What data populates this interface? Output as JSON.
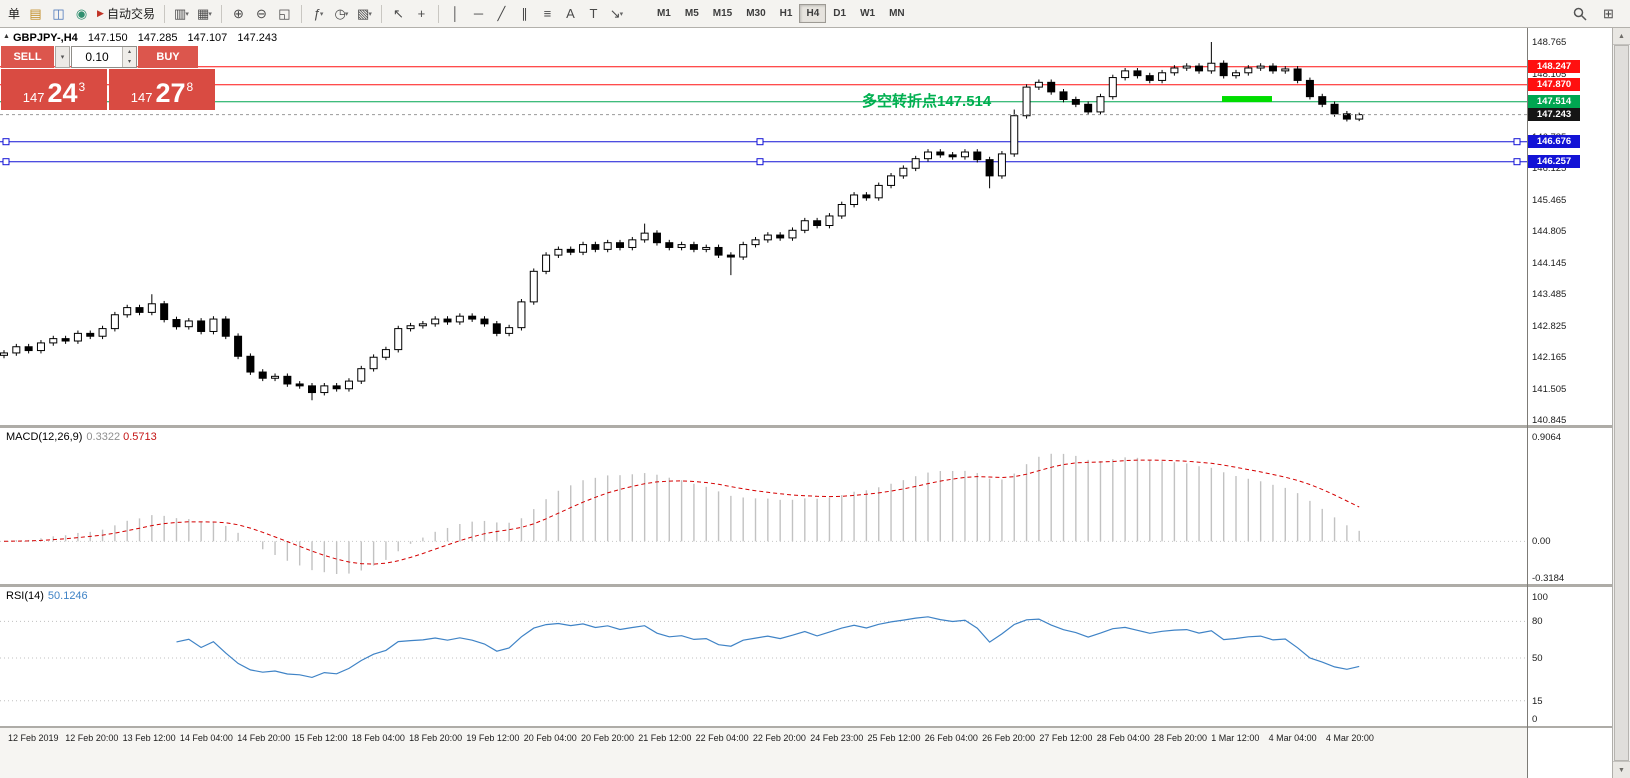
{
  "toolbar": {
    "caret_glyph": "▾",
    "items": [
      {
        "name": "new-order-button",
        "type": "text",
        "label": "单"
      },
      {
        "name": "market-watch-icon",
        "glyph": "▤",
        "color": "#c08a22"
      },
      {
        "name": "navigator-icon",
        "glyph": "◫",
        "color": "#4472b8"
      },
      {
        "name": "terminal-icon",
        "glyph": "◉",
        "color": "#2f8f6f"
      },
      {
        "name": "autotrading-button",
        "type": "text",
        "glyph": "▶",
        "glyph_color": "#c03326",
        "label": "自动交易"
      },
      {
        "sep": true
      },
      {
        "name": "new-chart-icon",
        "glyph": "▥",
        "caret": true
      },
      {
        "name": "profiles-icon",
        "glyph": "▦",
        "caret": true
      },
      {
        "sep": true
      },
      {
        "name": "zoom-in-icon",
        "glyph": "⊕"
      },
      {
        "name": "zoom-out-icon",
        "glyph": "⊖"
      },
      {
        "name": "tile-windows-icon",
        "glyph": "◱"
      },
      {
        "sep": true
      },
      {
        "name": "indicators-icon",
        "glyph": "ƒ",
        "caret": true
      },
      {
        "name": "periods-icon",
        "glyph": "◷",
        "caret": true
      },
      {
        "name": "templates-icon",
        "glyph": "▧",
        "caret": true
      },
      {
        "sep": true
      },
      {
        "name": "cursor-icon",
        "glyph": "↖"
      },
      {
        "name": "crosshair-icon",
        "glyph": "+"
      },
      {
        "sep": true
      },
      {
        "name": "vertical-line-icon",
        "glyph": "│"
      },
      {
        "name": "horizontal-line-icon",
        "glyph": "─"
      },
      {
        "name": "trendline-icon",
        "glyph": "╱"
      },
      {
        "name": "channel-icon",
        "glyph": "∥"
      },
      {
        "name": "fibonacci-icon",
        "glyph": "≡"
      },
      {
        "name": "text-icon",
        "glyph": "A"
      },
      {
        "name": "label-icon",
        "glyph": "T"
      },
      {
        "name": "arrows-icon",
        "glyph": "↘",
        "caret": true
      }
    ],
    "timeframes": [
      "M1",
      "M5",
      "M15",
      "M30",
      "H1",
      "H4",
      "D1",
      "W1",
      "MN"
    ],
    "active_timeframe": "H4",
    "right_window_glyph": "⊞"
  },
  "trade_panel": {
    "sell_label": "SELL",
    "buy_label": "BUY",
    "volume": "0.10",
    "caret": "▾",
    "spin_up": "▴",
    "spin_down": "▾",
    "sell_price": {
      "main": "147",
      "big": "24",
      "sup": "3"
    },
    "buy_price": {
      "main": "147",
      "big": "27",
      "sup": "8"
    }
  },
  "chart": {
    "collapse_glyph": "▲",
    "title": {
      "symbol": "GBPJPY-,H4",
      "open": "147.150",
      "high": "147.285",
      "low": "147.107",
      "close": "147.243"
    },
    "annotation": {
      "text": "多空转折点147.514",
      "color": "#00b050"
    }
  },
  "scrollbar": {
    "up": "▲",
    "down": "▼"
  },
  "chart_data": {
    "type": "candlestick",
    "symbol": "GBPJPY-",
    "timeframe": "H4",
    "price_axis_range": [
      140.845,
      148.765
    ],
    "price_axis_labels": [
      "148.765",
      "148.105",
      "147.445",
      "146.785",
      "146.125",
      "145.465",
      "144.805",
      "144.145",
      "143.485",
      "142.825",
      "142.165",
      "141.505",
      "140.845"
    ],
    "current_price": 147.243,
    "current_price_tag_color": "#151515",
    "hlines": [
      {
        "price": 148.247,
        "color": "#ff1010",
        "tag": true
      },
      {
        "price": 147.87,
        "color": "#ff1010",
        "tag": true
      },
      {
        "price": 147.514,
        "color": "#00a651",
        "tag": true
      },
      {
        "price": 146.676,
        "color": "#1313d6",
        "tag": true,
        "handles": true
      },
      {
        "price": 146.257,
        "color": "#1313d6",
        "tag": true,
        "handles": true
      }
    ],
    "green_segment": {
      "price": 147.57,
      "color": "#00dd00"
    },
    "time_labels": [
      "12 Feb 2019",
      "12 Feb 20:00",
      "13 Feb 12:00",
      "14 Feb 04:00",
      "14 Feb 20:00",
      "15 Feb 12:00",
      "18 Feb 04:00",
      "18 Feb 20:00",
      "19 Feb 12:00",
      "20 Feb 04:00",
      "20 Feb 20:00",
      "21 Feb 12:00",
      "22 Feb 04:00",
      "22 Feb 20:00",
      "24 Feb 23:00",
      "25 Feb 12:00",
      "26 Feb 04:00",
      "26 Feb 20:00",
      "27 Feb 12:00",
      "28 Feb 04:00",
      "28 Feb 20:00",
      "1 Mar 12:00",
      "4 Mar 04:00",
      "4 Mar 20:00"
    ],
    "ohlc": [
      [
        142.2,
        142.31,
        142.14,
        142.25
      ],
      [
        142.25,
        142.44,
        142.19,
        142.38
      ],
      [
        142.38,
        142.44,
        142.24,
        142.3
      ],
      [
        142.3,
        142.52,
        142.24,
        142.46
      ],
      [
        142.46,
        142.61,
        142.4,
        142.55
      ],
      [
        142.55,
        142.61,
        142.44,
        142.5
      ],
      [
        142.5,
        142.72,
        142.44,
        142.66
      ],
      [
        142.66,
        142.72,
        142.54,
        142.6
      ],
      [
        142.6,
        142.82,
        142.54,
        142.76
      ],
      [
        142.76,
        143.11,
        142.7,
        143.05
      ],
      [
        143.05,
        143.26,
        142.99,
        143.2
      ],
      [
        143.2,
        143.26,
        143.04,
        143.1
      ],
      [
        143.1,
        143.48,
        143.04,
        143.28
      ],
      [
        143.28,
        143.34,
        142.89,
        142.95
      ],
      [
        142.95,
        143.01,
        142.74,
        142.8
      ],
      [
        142.8,
        142.98,
        142.74,
        142.92
      ],
      [
        142.92,
        142.98,
        142.64,
        142.7
      ],
      [
        142.7,
        143.02,
        142.64,
        142.96
      ],
      [
        142.96,
        143.02,
        142.54,
        142.6
      ],
      [
        142.6,
        142.66,
        142.12,
        142.18
      ],
      [
        142.18,
        142.24,
        141.79,
        141.85
      ],
      [
        141.85,
        141.91,
        141.66,
        141.72
      ],
      [
        141.72,
        141.82,
        141.66,
        141.76
      ],
      [
        141.76,
        141.82,
        141.54,
        141.6
      ],
      [
        141.6,
        141.66,
        141.5,
        141.56
      ],
      [
        141.56,
        141.62,
        141.26,
        141.42
      ],
      [
        141.42,
        141.62,
        141.36,
        141.56
      ],
      [
        141.56,
        141.62,
        141.44,
        141.5
      ],
      [
        141.5,
        141.72,
        141.44,
        141.66
      ],
      [
        141.66,
        141.98,
        141.6,
        141.92
      ],
      [
        141.92,
        142.22,
        141.86,
        142.16
      ],
      [
        142.16,
        142.38,
        142.1,
        142.32
      ],
      [
        142.32,
        142.82,
        142.26,
        142.76
      ],
      [
        142.76,
        142.88,
        142.7,
        142.82
      ],
      [
        142.82,
        142.92,
        142.76,
        142.86
      ],
      [
        142.86,
        143.02,
        142.8,
        142.96
      ],
      [
        142.96,
        143.02,
        142.84,
        142.9
      ],
      [
        142.9,
        143.08,
        142.84,
        143.02
      ],
      [
        143.02,
        143.08,
        142.9,
        142.96
      ],
      [
        142.96,
        143.02,
        142.8,
        142.86
      ],
      [
        142.86,
        142.92,
        142.6,
        142.66
      ],
      [
        142.66,
        142.84,
        142.6,
        142.78
      ],
      [
        142.78,
        143.38,
        142.72,
        143.32
      ],
      [
        143.32,
        144.02,
        143.26,
        143.96
      ],
      [
        143.96,
        144.36,
        143.9,
        144.3
      ],
      [
        144.3,
        144.48,
        144.24,
        144.42
      ],
      [
        144.42,
        144.48,
        144.3,
        144.36
      ],
      [
        144.36,
        144.58,
        144.3,
        144.52
      ],
      [
        144.52,
        144.58,
        144.36,
        144.42
      ],
      [
        144.42,
        144.62,
        144.36,
        144.56
      ],
      [
        144.56,
        144.62,
        144.4,
        144.46
      ],
      [
        144.46,
        144.68,
        144.4,
        144.62
      ],
      [
        144.62,
        144.96,
        144.56,
        144.76
      ],
      [
        144.76,
        144.82,
        144.5,
        144.56
      ],
      [
        144.56,
        144.62,
        144.4,
        144.46
      ],
      [
        144.46,
        144.58,
        144.4,
        144.52
      ],
      [
        144.52,
        144.58,
        144.36,
        144.42
      ],
      [
        144.42,
        144.52,
        144.36,
        144.46
      ],
      [
        144.46,
        144.52,
        144.24,
        144.3
      ],
      [
        144.3,
        144.36,
        143.88,
        144.26
      ],
      [
        144.26,
        144.58,
        144.2,
        144.52
      ],
      [
        144.52,
        144.68,
        144.46,
        144.62
      ],
      [
        144.62,
        144.78,
        144.56,
        144.72
      ],
      [
        144.72,
        144.78,
        144.6,
        144.66
      ],
      [
        144.66,
        144.88,
        144.6,
        144.82
      ],
      [
        144.82,
        145.08,
        144.76,
        145.02
      ],
      [
        145.02,
        145.08,
        144.86,
        144.92
      ],
      [
        144.92,
        145.18,
        144.86,
        145.12
      ],
      [
        145.12,
        145.42,
        145.06,
        145.36
      ],
      [
        145.36,
        145.62,
        145.3,
        145.56
      ],
      [
        145.56,
        145.62,
        145.44,
        145.5
      ],
      [
        145.5,
        145.82,
        145.44,
        145.76
      ],
      [
        145.76,
        146.02,
        145.7,
        145.96
      ],
      [
        145.96,
        146.18,
        145.9,
        146.12
      ],
      [
        146.12,
        146.38,
        146.06,
        146.32
      ],
      [
        146.32,
        146.52,
        146.26,
        146.46
      ],
      [
        146.46,
        146.52,
        146.34,
        146.4
      ],
      [
        146.4,
        146.46,
        146.3,
        146.36
      ],
      [
        146.36,
        146.52,
        146.3,
        146.46
      ],
      [
        146.46,
        146.52,
        146.24,
        146.3
      ],
      [
        146.3,
        146.36,
        145.7,
        145.96
      ],
      [
        145.96,
        146.48,
        145.9,
        146.42
      ],
      [
        146.42,
        147.35,
        146.36,
        147.22
      ],
      [
        147.22,
        147.88,
        147.16,
        147.82
      ],
      [
        147.82,
        147.98,
        147.76,
        147.92
      ],
      [
        147.92,
        147.98,
        147.66,
        147.72
      ],
      [
        147.72,
        147.78,
        147.5,
        147.56
      ],
      [
        147.56,
        147.62,
        147.4,
        147.46
      ],
      [
        147.46,
        147.52,
        147.24,
        147.3
      ],
      [
        147.3,
        147.68,
        147.24,
        147.62
      ],
      [
        147.62,
        148.08,
        147.56,
        148.02
      ],
      [
        148.02,
        148.22,
        147.96,
        148.16
      ],
      [
        148.16,
        148.22,
        148.0,
        148.06
      ],
      [
        148.06,
        148.12,
        147.9,
        147.96
      ],
      [
        147.96,
        148.18,
        147.9,
        148.12
      ],
      [
        148.12,
        148.28,
        148.06,
        148.22
      ],
      [
        148.22,
        148.32,
        148.16,
        148.26
      ],
      [
        148.26,
        148.32,
        148.1,
        148.16
      ],
      [
        148.16,
        148.765,
        148.1,
        148.32
      ],
      [
        148.32,
        148.38,
        148.0,
        148.06
      ],
      [
        148.06,
        148.18,
        148.0,
        148.12
      ],
      [
        148.12,
        148.28,
        148.06,
        148.22
      ],
      [
        148.22,
        148.32,
        148.16,
        148.26
      ],
      [
        148.26,
        148.32,
        148.1,
        148.16
      ],
      [
        148.16,
        148.26,
        148.1,
        148.2
      ],
      [
        148.2,
        148.26,
        147.9,
        147.96
      ],
      [
        147.96,
        148.02,
        147.56,
        147.62
      ],
      [
        147.62,
        147.68,
        147.4,
        147.46
      ],
      [
        147.46,
        147.52,
        147.2,
        147.26
      ],
      [
        147.26,
        147.32,
        147.1,
        147.15
      ],
      [
        147.15,
        147.285,
        147.107,
        147.243
      ]
    ],
    "indicators": [
      {
        "type": "MACD",
        "label": "MACD(12,26,9)",
        "params": [
          12,
          26,
          9
        ],
        "value_main": "0.3322",
        "value_signal": "0.5713",
        "axis_labels": [
          "0.9064",
          "0.00",
          "-0.3184"
        ],
        "axis_range": [
          -0.3184,
          0.9064
        ]
      },
      {
        "type": "RSI",
        "label": "RSI(14)",
        "params": [
          14
        ],
        "value": "50.1246",
        "axis_labels": [
          "100",
          "80",
          "50",
          "15",
          "0"
        ],
        "levels": [
          80,
          50,
          15
        ],
        "axis_range": [
          0,
          100
        ]
      }
    ]
  }
}
